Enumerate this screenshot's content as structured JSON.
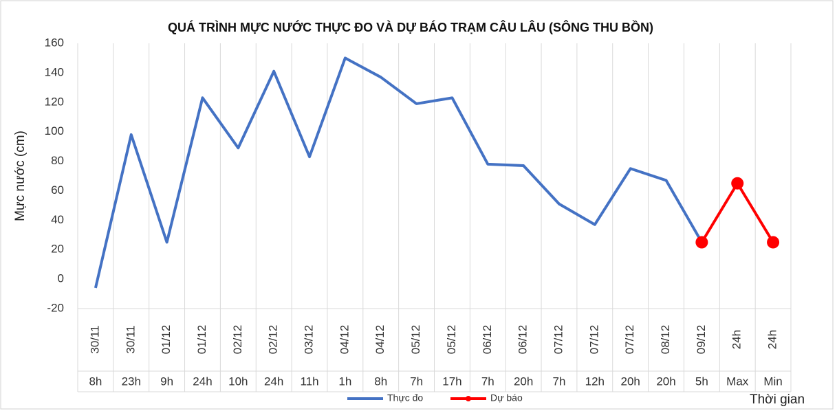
{
  "chart_data": {
    "type": "line",
    "title": "QUÁ TRÌNH MỰC NƯỚC THỰC ĐO VÀ DỰ BÁO TRẠM CÂU LÂU (SÔNG THU BỒN)",
    "y_label": "Mực nước (cm)",
    "x_label": "Thời gian",
    "categories": [
      {
        "date": "30/11",
        "time": "8h"
      },
      {
        "date": "30/11",
        "time": "23h"
      },
      {
        "date": "01/12",
        "time": "9h"
      },
      {
        "date": "01/12",
        "time": "24h"
      },
      {
        "date": "02/12",
        "time": "10h"
      },
      {
        "date": "02/12",
        "time": "24h"
      },
      {
        "date": "03/12",
        "time": "11h"
      },
      {
        "date": "04/12",
        "time": "1h"
      },
      {
        "date": "04/12",
        "time": "8h"
      },
      {
        "date": "05/12",
        "time": "7h"
      },
      {
        "date": "05/12",
        "time": "17h"
      },
      {
        "date": "06/12",
        "time": "7h"
      },
      {
        "date": "06/12",
        "time": "20h"
      },
      {
        "date": "07/12",
        "time": "7h"
      },
      {
        "date": "07/12",
        "time": "12h"
      },
      {
        "date": "07/12",
        "time": "20h"
      },
      {
        "date": "08/12",
        "time": "20h"
      },
      {
        "date": "09/12",
        "time": "5h"
      },
      {
        "date": "24h",
        "time": "Max"
      },
      {
        "date": "24h",
        "time": "Min"
      }
    ],
    "series": [
      {
        "name": "Thực đo",
        "color": "#4472c4",
        "markers": false,
        "values": [
          -6,
          98,
          25,
          123,
          89,
          141,
          83,
          150,
          137,
          119,
          123,
          78,
          77,
          51,
          37,
          75,
          67,
          25,
          null,
          null
        ]
      },
      {
        "name": "Dự báo",
        "color": "#ff0000",
        "markers": true,
        "values": [
          null,
          null,
          null,
          null,
          null,
          null,
          null,
          null,
          null,
          null,
          null,
          null,
          null,
          null,
          null,
          null,
          null,
          25,
          65,
          25
        ]
      }
    ],
    "ylim": [
      -20,
      160
    ],
    "yticks": [
      -20,
      0,
      20,
      40,
      60,
      80,
      100,
      120,
      140,
      160
    ],
    "legend": "bottom"
  }
}
